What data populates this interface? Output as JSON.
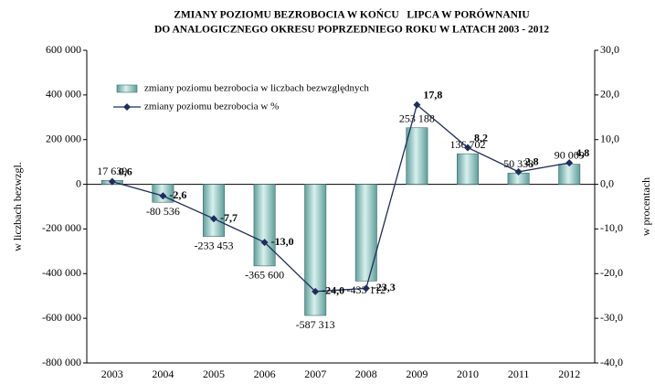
{
  "chart_data": {
    "type": "bar-line",
    "title": [
      "ZMIANY POZIOMU BEZROBOCIA W KOŃCU   LIPCA W PORÓWNANIU",
      "DO ANALOGICZNEGO OKRESU POPRZEDNIEGO ROKU W LATACH 2003 - 2012"
    ],
    "ylabel": "w liczbach bezwzgl.",
    "y2label": "w procentach",
    "categories": [
      "2003",
      "2004",
      "2005",
      "2006",
      "2007",
      "2008",
      "2009",
      "2010",
      "2011",
      "2012"
    ],
    "series": [
      {
        "name": "zmiany poziomu bezrobocia w liczbach bezwzględnych",
        "type": "bar",
        "color": "#8ccbc6",
        "values": [
          17639,
          -80536,
          -233453,
          -365600,
          -587313,
          -433112,
          253188,
          136702,
          50338,
          90009
        ],
        "value_labels": [
          "17 639",
          "-80 536",
          "-233 453",
          "-365 600",
          "-587 313",
          "-433 112",
          "253 188",
          "136 702",
          "50 338",
          "90 009"
        ]
      },
      {
        "name": "zmiany poziomu bezrobocia w %",
        "type": "line",
        "axis": "y2",
        "color": "#1f2d5c",
        "values": [
          0.6,
          -2.6,
          -7.7,
          -13.0,
          -24.0,
          -23.3,
          17.8,
          8.2,
          2.8,
          4.8
        ],
        "value_labels": [
          "0,6",
          "-2,6",
          "-7,7",
          "-13,0",
          "-24,0",
          "-23,3",
          "17,8",
          "8,2",
          "2,8",
          "4,8"
        ]
      }
    ],
    "ylim": [
      -800000,
      600000
    ],
    "yticks": [
      {
        "value": -800000,
        "label": "-800 000"
      },
      {
        "value": -600000,
        "label": "-600 000"
      },
      {
        "value": -400000,
        "label": "-400 000"
      },
      {
        "value": -200000,
        "label": "-200 000"
      },
      0,
      {
        "value": 200000,
        "label": "200 000"
      },
      {
        "value": 400000,
        "label": "400 000"
      },
      {
        "value": 600000,
        "label": "600 000"
      }
    ],
    "y2lim": [
      -40,
      30
    ],
    "y2ticks": [
      {
        "value": -40,
        "label": "-40,0"
      },
      {
        "value": -30,
        "label": "-30,0"
      },
      {
        "value": -20,
        "label": "-20,0"
      },
      {
        "value": -10,
        "label": "-10,0"
      },
      {
        "value": 0,
        "label": "0,0"
      },
      {
        "value": 10,
        "label": "10,0"
      },
      {
        "value": 20,
        "label": "20,0"
      },
      {
        "value": 30,
        "label": "30,0"
      }
    ],
    "grid": false,
    "legend": "upper left"
  }
}
